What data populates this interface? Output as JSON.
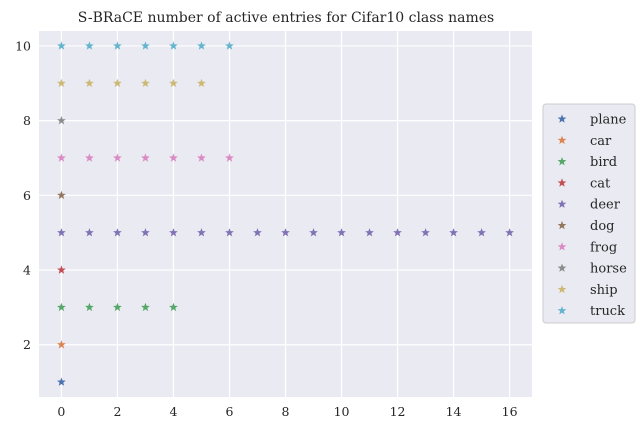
{
  "chart_data": {
    "type": "scatter",
    "title": "S-BRaCE number of active entries for Cifar10 class names",
    "xlabel": "",
    "ylabel": "",
    "xlim": [
      -0.8,
      16.8
    ],
    "ylim": [
      0.6,
      10.4
    ],
    "xticks": [
      0,
      2,
      4,
      6,
      8,
      10,
      12,
      14,
      16
    ],
    "yticks": [
      2,
      4,
      6,
      8,
      10
    ],
    "grid": true,
    "marker": "star",
    "legend_position": "right",
    "series": [
      {
        "name": "plane",
        "color": "#4c72b0",
        "points": [
          [
            0,
            1
          ]
        ]
      },
      {
        "name": "car",
        "color": "#dd8452",
        "points": [
          [
            0,
            2
          ]
        ]
      },
      {
        "name": "bird",
        "color": "#55a868",
        "points": [
          [
            0,
            3
          ],
          [
            1,
            3
          ],
          [
            2,
            3
          ],
          [
            3,
            3
          ],
          [
            4,
            3
          ]
        ]
      },
      {
        "name": "cat",
        "color": "#c44e52",
        "points": [
          [
            0,
            4
          ]
        ]
      },
      {
        "name": "deer",
        "color": "#8172b3",
        "points": [
          [
            0,
            5
          ],
          [
            1,
            5
          ],
          [
            2,
            5
          ],
          [
            3,
            5
          ],
          [
            4,
            5
          ],
          [
            5,
            5
          ],
          [
            6,
            5
          ],
          [
            7,
            5
          ],
          [
            8,
            5
          ],
          [
            9,
            5
          ],
          [
            10,
            5
          ],
          [
            11,
            5
          ],
          [
            12,
            5
          ],
          [
            13,
            5
          ],
          [
            14,
            5
          ],
          [
            15,
            5
          ],
          [
            16,
            5
          ]
        ]
      },
      {
        "name": "dog",
        "color": "#937860",
        "points": [
          [
            0,
            6
          ]
        ]
      },
      {
        "name": "frog",
        "color": "#da8bc3",
        "points": [
          [
            0,
            7
          ],
          [
            1,
            7
          ],
          [
            2,
            7
          ],
          [
            3,
            7
          ],
          [
            4,
            7
          ],
          [
            5,
            7
          ],
          [
            6,
            7
          ]
        ]
      },
      {
        "name": "horse",
        "color": "#8c8c8c",
        "points": [
          [
            0,
            8
          ]
        ]
      },
      {
        "name": "ship",
        "color": "#ccb974",
        "points": [
          [
            0,
            9
          ],
          [
            1,
            9
          ],
          [
            2,
            9
          ],
          [
            3,
            9
          ],
          [
            4,
            9
          ],
          [
            5,
            9
          ]
        ]
      },
      {
        "name": "truck",
        "color": "#64b5cd",
        "points": [
          [
            0,
            10
          ],
          [
            1,
            10
          ],
          [
            2,
            10
          ],
          [
            3,
            10
          ],
          [
            4,
            10
          ],
          [
            5,
            10
          ],
          [
            6,
            10
          ]
        ]
      }
    ]
  }
}
